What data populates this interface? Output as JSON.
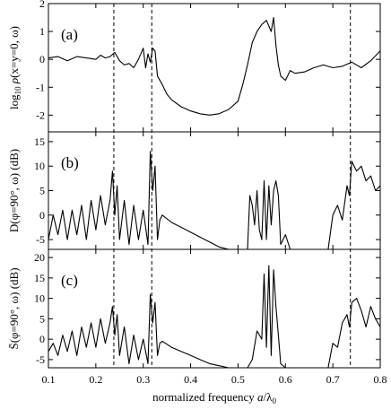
{
  "chart_data": [
    {
      "type": "line",
      "panel_label": "(a)",
      "ylabel": "log10 ρ(x=y=0, ω)",
      "ylabel_parts": {
        "prefix": "log",
        "sub": "10",
        "rho": "ρ",
        "args": "(x=y=0, ω)"
      },
      "xlabel": "",
      "xlim": [
        0.1,
        0.8
      ],
      "ylim": [
        -2.6,
        2.0
      ],
      "yticks": [
        -2,
        -1,
        0,
        1,
        2
      ],
      "grid": false,
      "series": [
        {
          "x": [
            0.1,
            0.12,
            0.14,
            0.16,
            0.18,
            0.2,
            0.21,
            0.22,
            0.23,
            0.24,
            0.25,
            0.26,
            0.27,
            0.28,
            0.29,
            0.3,
            0.305,
            0.31,
            0.315,
            0.32,
            0.325,
            0.33,
            0.34,
            0.35,
            0.36,
            0.38,
            0.4,
            0.42,
            0.44,
            0.46,
            0.48,
            0.5,
            0.51,
            0.52,
            0.53,
            0.54,
            0.55,
            0.56,
            0.57,
            0.575,
            0.58,
            0.585,
            0.59,
            0.6,
            0.61,
            0.62,
            0.64,
            0.66,
            0.68,
            0.7,
            0.72,
            0.74,
            0.76,
            0.78,
            0.8
          ],
          "y": [
            0.05,
            0.1,
            -0.05,
            0.1,
            0.05,
            0.0,
            0.15,
            0.05,
            0.1,
            0.25,
            -0.05,
            -0.2,
            -0.15,
            -0.3,
            0.0,
            0.4,
            -0.3,
            0.2,
            -0.1,
            0.4,
            0.3,
            -0.6,
            -0.9,
            -1.25,
            -1.45,
            -1.7,
            -1.85,
            -1.95,
            -2.0,
            -1.95,
            -1.8,
            -1.5,
            -0.9,
            -0.2,
            0.6,
            1.0,
            1.25,
            1.4,
            1.0,
            1.5,
            0.5,
            -0.2,
            -0.6,
            -0.75,
            -0.4,
            -0.5,
            -0.45,
            -0.3,
            -0.2,
            -0.3,
            -0.25,
            -0.1,
            -0.3,
            -0.05,
            0.3
          ]
        }
      ]
    },
    {
      "type": "line",
      "panel_label": "(b)",
      "ylabel": "D(φ=90°, ω) (dB)",
      "ylabel_parts": {
        "main": "D(φ=90°, ω)",
        "unit": "(dB)"
      },
      "xlabel": "",
      "xlim": [
        0.1,
        0.8
      ],
      "ylim": [
        -7,
        17
      ],
      "yticks": [
        -5,
        0,
        5,
        10,
        15
      ],
      "grid": false,
      "series": [
        {
          "x": [
            0.1,
            0.11,
            0.12,
            0.13,
            0.14,
            0.15,
            0.16,
            0.17,
            0.18,
            0.19,
            0.2,
            0.21,
            0.22,
            0.23,
            0.235,
            0.24,
            0.245,
            0.25,
            0.26,
            0.27,
            0.28,
            0.29,
            0.3,
            0.31,
            0.315,
            0.32,
            0.325,
            0.33,
            0.335,
            0.34,
            0.36,
            0.38,
            0.4,
            0.42,
            0.44,
            0.46,
            0.48,
            0.5
          ],
          "y": [
            -5,
            0,
            -4,
            1,
            -5,
            1,
            -4,
            2,
            -5,
            3,
            -3,
            4,
            -2,
            3,
            9,
            0,
            6,
            -5,
            3,
            -6,
            2,
            -5,
            1,
            -6,
            13,
            5,
            10,
            -5,
            -1,
            0,
            -1.5,
            -2.5,
            -3.5,
            -4.5,
            -5.5,
            -6.5,
            -7.5,
            -8
          ],
          "segment": "left"
        },
        {
          "x": [
            0.52,
            0.525,
            0.53,
            0.535,
            0.54,
            0.545,
            0.55,
            0.555,
            0.56,
            0.565,
            0.57,
            0.575,
            0.58,
            0.585,
            0.59,
            0.6,
            0.61
          ],
          "y": [
            -7,
            4,
            2,
            -2,
            5,
            -3,
            -5,
            7,
            -5,
            6,
            -2,
            5,
            7,
            4,
            -6,
            -4,
            -7
          ],
          "segment": "middle"
        },
        {
          "x": [
            0.69,
            0.7,
            0.71,
            0.72,
            0.73,
            0.735,
            0.74,
            0.75,
            0.76,
            0.77,
            0.78,
            0.79,
            0.8
          ],
          "y": [
            -7,
            0,
            2,
            -1,
            6,
            4,
            11,
            9,
            10,
            7,
            8,
            5,
            6
          ],
          "segment": "right"
        }
      ]
    },
    {
      "type": "line",
      "panel_label": "(c)",
      "ylabel": "S̄(φ=90°, ω) (dB)",
      "ylabel_parts": {
        "main": "S̄(φ=90°, ω)",
        "unit": "(dB)"
      },
      "xlabel": "normalized frequency a/λ0",
      "xlabel_parts": {
        "main": "normalized frequency ",
        "a": "a",
        "slash": "/λ",
        "sub": "0"
      },
      "xlim": [
        0.1,
        0.8
      ],
      "ylim": [
        -7,
        22
      ],
      "yticks": [
        -5,
        0,
        5,
        10,
        15,
        20
      ],
      "xticks": [
        0.1,
        0.2,
        0.3,
        0.4,
        0.5,
        0.6,
        0.7,
        0.8
      ],
      "xtick_labels": [
        "0.1",
        "0.2",
        "0.3",
        "0.4",
        "0.5",
        "0.6",
        "0.7",
        "0.8"
      ],
      "grid": false,
      "series": [
        {
          "x": [
            0.1,
            0.11,
            0.12,
            0.13,
            0.14,
            0.15,
            0.16,
            0.17,
            0.18,
            0.19,
            0.2,
            0.21,
            0.22,
            0.23,
            0.235,
            0.24,
            0.245,
            0.25,
            0.26,
            0.27,
            0.28,
            0.29,
            0.3,
            0.31,
            0.315,
            0.32,
            0.325,
            0.33,
            0.335,
            0.34,
            0.36,
            0.38,
            0.4,
            0.42,
            0.44,
            0.46,
            0.48,
            0.5
          ],
          "y": [
            -3,
            -1,
            -4,
            1,
            -3,
            2,
            -4,
            3,
            -2,
            4,
            -2,
            5,
            -1,
            4,
            8,
            1,
            6,
            -4,
            3,
            -6,
            1,
            -5,
            0,
            -6,
            11,
            4,
            9,
            -4,
            -1,
            -0.5,
            -2,
            -3,
            -4,
            -5,
            -6,
            -6.5,
            -7,
            -7.5
          ],
          "segment": "left"
        },
        {
          "x": [
            0.52,
            0.53,
            0.54,
            0.55,
            0.555,
            0.56,
            0.565,
            0.57,
            0.575,
            0.58,
            0.585,
            0.59,
            0.6
          ],
          "y": [
            -7,
            -5,
            2,
            0,
            16,
            -2,
            18,
            -4,
            17,
            8,
            1,
            -6,
            -7
          ],
          "segment": "middle"
        },
        {
          "x": [
            0.69,
            0.7,
            0.71,
            0.72,
            0.73,
            0.735,
            0.74,
            0.75,
            0.76,
            0.77,
            0.78,
            0.79,
            0.8
          ],
          "y": [
            -7,
            -1,
            -2,
            4,
            6,
            3,
            9,
            10,
            7,
            3,
            8,
            5,
            3
          ],
          "segment": "right"
        }
      ]
    }
  ],
  "dashed_lines_x": [
    0.238,
    0.318,
    0.737
  ]
}
